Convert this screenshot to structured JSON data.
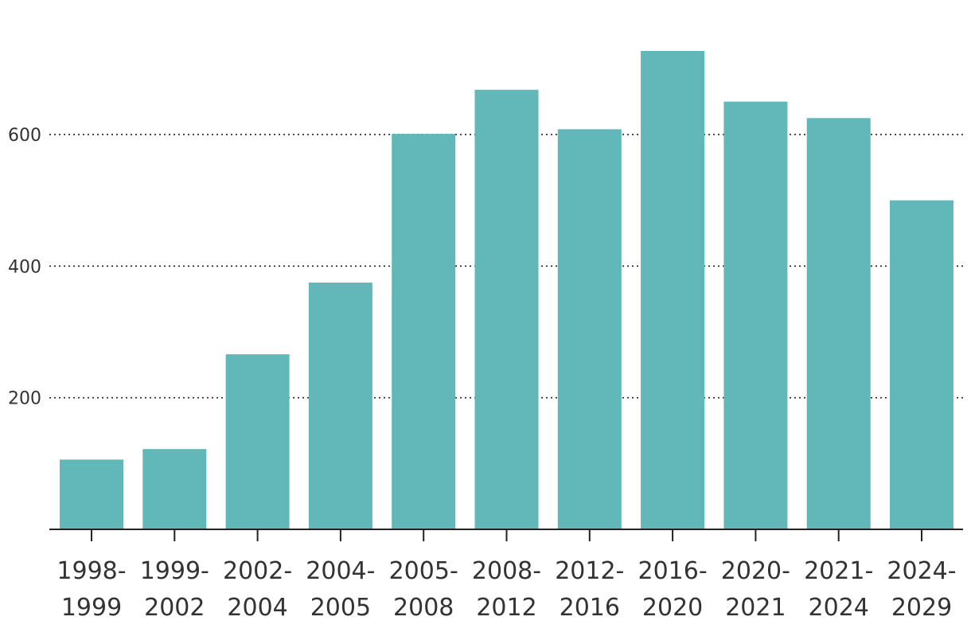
{
  "chart_data": {
    "type": "bar",
    "categories": [
      [
        "1998-",
        "1999"
      ],
      [
        "1999-",
        "2002"
      ],
      [
        "2002-",
        "2004"
      ],
      [
        "2004-",
        "2005"
      ],
      [
        "2005-",
        "2008"
      ],
      [
        "2008-",
        "2012"
      ],
      [
        "2012-",
        "2016"
      ],
      [
        "2016-",
        "2020"
      ],
      [
        "2020-",
        "2021"
      ],
      [
        "2021-",
        "2024"
      ],
      [
        "2024-",
        "2029"
      ]
    ],
    "values": [
      106,
      122,
      266,
      375,
      601,
      668,
      608,
      727,
      650,
      625,
      500
    ],
    "title": "",
    "xlabel": "",
    "ylabel": "",
    "ylim": [
      0,
      800
    ],
    "yticks": [
      200,
      400,
      600
    ],
    "grid": "horizontal-dotted",
    "bar_color": "#62b8b8"
  }
}
